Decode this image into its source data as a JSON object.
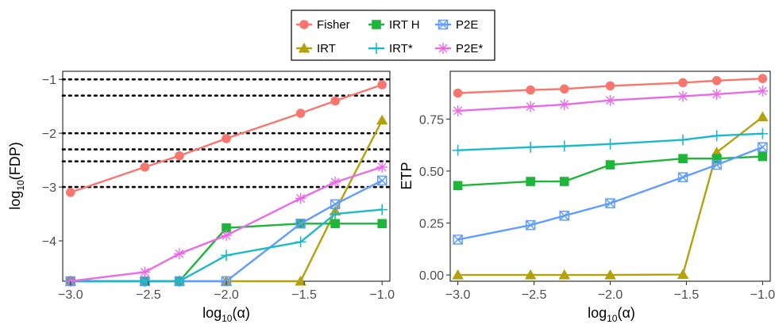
{
  "legend": {
    "items": [
      {
        "label": "Fisher",
        "color": "#F8766D",
        "marker": "circle"
      },
      {
        "label": "IRT H",
        "color": "#1DB53A",
        "marker": "square"
      },
      {
        "label": "P2E",
        "color": "#619CFF",
        "marker": "square-x"
      },
      {
        "label": "IRT",
        "color": "#B5A10E",
        "marker": "triangle"
      },
      {
        "label": "IRT*",
        "color": "#1DB9C8",
        "marker": "plus"
      },
      {
        "label": "P2E*",
        "color": "#EA6BE6",
        "marker": "star"
      }
    ]
  },
  "chart_data": [
    {
      "type": "line",
      "xlabel_base": "log",
      "xlabel_sub": "10",
      "xlabel_arg": "(α)",
      "ylabel_base": "log",
      "ylabel_sub": "10",
      "ylabel_arg": "(FDP)",
      "xlim": [
        -3.05,
        -0.95
      ],
      "ylim": [
        -4.75,
        -0.85
      ],
      "xticks": [
        -3.0,
        -2.5,
        -2.0,
        -1.5,
        -1.0
      ],
      "xtick_labels": [
        "−3.0",
        "−2.5",
        "−2.0",
        "−1.5",
        "−1.0"
      ],
      "yticks": [
        -4,
        -3,
        -2,
        -1
      ],
      "ytick_labels": [
        "−4",
        "−3",
        "−2",
        "−1"
      ],
      "reference_lines": [
        -3.0,
        -2.523,
        -2.301,
        -2.0,
        -1.301,
        -1.0
      ],
      "x": [
        -3.0,
        -2.523,
        -2.301,
        -2.0,
        -1.523,
        -1.301,
        -1.0
      ],
      "series": [
        {
          "name": "IRT",
          "values": [
            -4.75,
            -4.75,
            -4.75,
            -4.75,
            -4.75,
            -3.45,
            -1.76
          ]
        },
        {
          "name": "IRT H",
          "values": [
            -4.75,
            -4.75,
            -4.75,
            -3.76,
            -3.68,
            -3.68,
            -3.68
          ]
        },
        {
          "name": "P2E",
          "values": [
            -4.75,
            -4.75,
            -4.75,
            -4.75,
            -3.68,
            -3.32,
            -2.88
          ]
        },
        {
          "name": "IRT*",
          "values": [
            -4.75,
            -4.75,
            -4.75,
            -4.27,
            -4.02,
            -3.5,
            -3.42
          ]
        },
        {
          "name": "P2E*",
          "values": [
            -4.75,
            -4.58,
            -4.24,
            -3.9,
            -3.21,
            -2.91,
            -2.63
          ]
        },
        {
          "name": "Fisher",
          "values": [
            -3.1,
            -2.63,
            -2.42,
            -2.1,
            -1.63,
            -1.4,
            -1.1
          ]
        }
      ]
    },
    {
      "type": "line",
      "xlabel_base": "log",
      "xlabel_sub": "10",
      "xlabel_arg": "(α)",
      "ylabel": "ETP",
      "xlim": [
        -3.05,
        -0.95
      ],
      "ylim": [
        -0.03,
        0.98
      ],
      "xticks": [
        -3.0,
        -2.5,
        -2.0,
        -1.5,
        -1.0
      ],
      "xtick_labels": [
        "−3.0",
        "−2.5",
        "−2.0",
        "−1.5",
        "−1.0"
      ],
      "yticks": [
        0.0,
        0.25,
        0.5,
        0.75
      ],
      "ytick_labels": [
        "0.00",
        "0.25",
        "0.50",
        "0.75"
      ],
      "x": [
        -3.0,
        -2.523,
        -2.301,
        -2.0,
        -1.523,
        -1.301,
        -1.0
      ],
      "series": [
        {
          "name": "IRT",
          "values": [
            0.0,
            0.0,
            0.0,
            0.0,
            0.002,
            0.59,
            0.76
          ]
        },
        {
          "name": "IRT H",
          "values": [
            0.43,
            0.45,
            0.45,
            0.53,
            0.56,
            0.56,
            0.57
          ]
        },
        {
          "name": "P2E",
          "values": [
            0.17,
            0.24,
            0.285,
            0.345,
            0.47,
            0.53,
            0.615
          ]
        },
        {
          "name": "IRT*",
          "values": [
            0.6,
            0.615,
            0.62,
            0.63,
            0.65,
            0.67,
            0.68
          ]
        },
        {
          "name": "P2E*",
          "values": [
            0.79,
            0.81,
            0.82,
            0.84,
            0.86,
            0.87,
            0.885
          ]
        },
        {
          "name": "Fisher",
          "values": [
            0.875,
            0.89,
            0.895,
            0.91,
            0.925,
            0.935,
            0.945
          ]
        }
      ]
    }
  ]
}
